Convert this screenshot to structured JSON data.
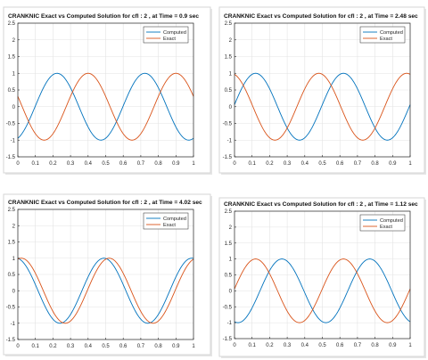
{
  "chart_data": [
    {
      "type": "line",
      "title": "CRANKNIC Exact vs Computed Solution for cfl : 2  , at Time = 0.9 sec",
      "xlim": [
        0,
        1
      ],
      "ylim": [
        -1.5,
        2.5
      ],
      "xticks": [
        0,
        0.1,
        0.2,
        0.3,
        0.4,
        0.5,
        0.6,
        0.7,
        0.8,
        0.9,
        1
      ],
      "yticks": [
        -1.5,
        -1,
        -0.5,
        0,
        0.5,
        1,
        1.5,
        2,
        2.5
      ],
      "grid": true,
      "legend": "top-right",
      "series": [
        {
          "name": "Computed",
          "color": "#0072BD",
          "func": "sin",
          "k": 12.566,
          "phase": -1.571,
          "shift": 0.223
        },
        {
          "name": "Exact",
          "color": "#D95319",
          "func": "sin",
          "k": 12.566,
          "phase": -1.571,
          "shift": 0.4
        }
      ]
    },
    {
      "type": "line",
      "title": "CRANKNIC Exact vs Computed Solution for cfl : 2  , at Time = 2.48 sec",
      "xlim": [
        0,
        1
      ],
      "ylim": [
        -1.5,
        2.5
      ],
      "xticks": [
        0,
        0.1,
        0.2,
        0.3,
        0.4,
        0.5,
        0.6,
        0.7,
        0.8,
        0.9,
        1
      ],
      "yticks": [
        -1.5,
        -1,
        -0.5,
        0,
        0.5,
        1,
        1.5,
        2,
        2.5
      ],
      "grid": true,
      "legend": "top-right",
      "series": [
        {
          "name": "Computed",
          "color": "#0072BD",
          "func": "sin",
          "k": 12.566,
          "phase": -1.571,
          "shift": 0.12
        },
        {
          "name": "Exact",
          "color": "#D95319",
          "func": "sin",
          "k": 12.566,
          "phase": -1.571,
          "shift": 0.48
        }
      ]
    },
    {
      "type": "line",
      "title": "CRANKNIC Exact vs Computed Solution for cfl : 2  , at Time = 4.02 sec",
      "xlim": [
        0,
        1
      ],
      "ylim": [
        -1.5,
        2.5
      ],
      "xticks": [
        0,
        0.1,
        0.2,
        0.3,
        0.4,
        0.5,
        0.6,
        0.7,
        0.8,
        0.9,
        1
      ],
      "yticks": [
        -1.5,
        -1,
        -0.5,
        0,
        0.5,
        1,
        1.5,
        2,
        2.5
      ],
      "grid": true,
      "legend": "top-right",
      "series": [
        {
          "name": "Computed",
          "color": "#0072BD",
          "func": "sin",
          "k": 12.566,
          "phase": -1.571,
          "shift": 0.49
        },
        {
          "name": "Exact",
          "color": "#D95319",
          "func": "sin",
          "k": 12.566,
          "phase": -1.571,
          "shift": 0.52
        }
      ]
    },
    {
      "type": "line",
      "title": "CRANKNIC Exact vs Computed Solution for cfl : 2  , at Time = 1.12 sec",
      "xlim": [
        0,
        1
      ],
      "ylim": [
        -1.5,
        2.5
      ],
      "xticks": [
        0,
        0.1,
        0.2,
        0.3,
        0.4,
        0.5,
        0.6,
        0.7,
        0.8,
        0.9,
        1
      ],
      "yticks": [
        -1.5,
        -1,
        -0.5,
        0,
        0.5,
        1,
        1.5,
        2,
        2.5
      ],
      "grid": true,
      "legend": "top-right",
      "series": [
        {
          "name": "Computed",
          "color": "#0072BD",
          "func": "sin",
          "k": 12.566,
          "phase": -1.571,
          "shift": 0.27
        },
        {
          "name": "Exact",
          "color": "#D95319",
          "func": "sin",
          "k": 12.566,
          "phase": -1.571,
          "shift": 0.12
        }
      ]
    }
  ]
}
